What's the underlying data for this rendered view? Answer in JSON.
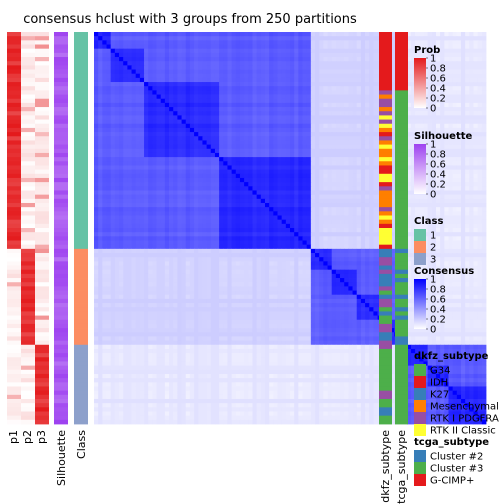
{
  "chart_data": {
    "type": "heatmap",
    "title": "consensus hclust with 3 groups from 250 partitions",
    "groups": [
      {
        "class": "1",
        "n": 52
      },
      {
        "class": "2",
        "n": 23
      },
      {
        "class": "3",
        "n": 19
      }
    ],
    "left_annotations": [
      "p1",
      "p2",
      "p3",
      "Silhouette",
      "Class"
    ],
    "right_annotations": [
      "dkfz_subtype",
      "tcga_subtype"
    ],
    "legends": {
      "prob": {
        "title": "Prob",
        "ticks": [
          "1",
          "0.8",
          "0.6",
          "0.4",
          "0.2",
          "0"
        ],
        "low": "#ffffff",
        "high": "#e41a1c"
      },
      "silhouette": {
        "title": "Silhouette",
        "ticks": [
          "1",
          "0.8",
          "0.6",
          "0.4",
          "0.2",
          "0"
        ],
        "low": "#ffffff",
        "high": "#9e42f0"
      },
      "class": {
        "title": "Class",
        "items": [
          {
            "label": "1",
            "color": "#66c2a5"
          },
          {
            "label": "2",
            "color": "#fc8d62"
          },
          {
            "label": "3",
            "color": "#8da0cb"
          }
        ]
      },
      "consensus": {
        "title": "Consensus",
        "ticks": [
          "1",
          "0.8",
          "0.6",
          "0.4",
          "0.2",
          "0"
        ],
        "low": "#ffffff",
        "high": "#0000ff"
      },
      "dkfz_subtype": {
        "title": "dkfz_subtype",
        "items": [
          {
            "label": "G34",
            "color": "#4daf4a"
          },
          {
            "label": "IDH",
            "color": "#e41a1c"
          },
          {
            "label": "K27",
            "color": "#377eb8"
          },
          {
            "label": "Mesenchymal",
            "color": "#ff7f00"
          },
          {
            "label": "RTK I PDGFRA",
            "color": "#984ea3"
          },
          {
            "label": "RTK II Classic",
            "color": "#ffff33"
          }
        ]
      },
      "tcga_subtype": {
        "title": "tcga_subtype",
        "items": [
          {
            "label": "Cluster #2",
            "color": "#377eb8"
          },
          {
            "label": "Cluster #3",
            "color": "#4daf4a"
          },
          {
            "label": "G-CIMP+",
            "color": "#e41a1c"
          }
        ]
      }
    }
  }
}
